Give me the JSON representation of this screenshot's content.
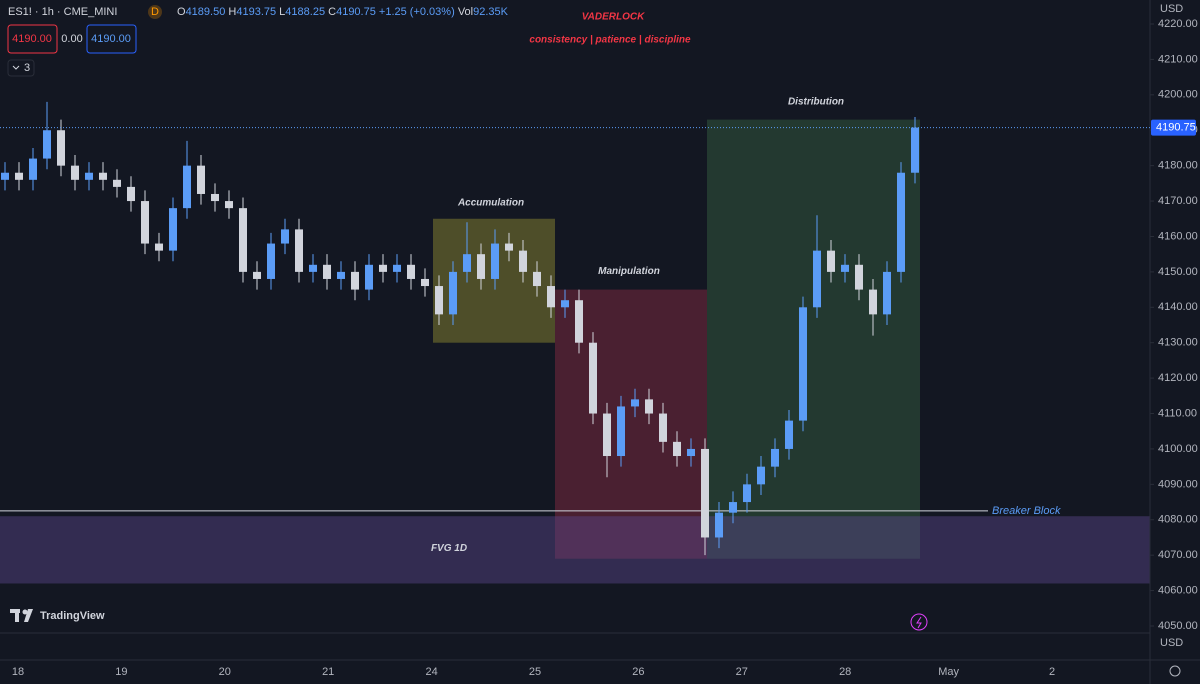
{
  "chart_data": {
    "type": "candlestick",
    "header": {
      "symbol": "ES1! · 1h · CME_MINI",
      "badge": "D",
      "ohlc": [
        {
          "label": "O",
          "value": "4189.50"
        },
        {
          "label": "H",
          "value": "4193.75"
        },
        {
          "label": "L",
          "value": "4188.25"
        },
        {
          "label": "C",
          "value": "4190.75"
        }
      ],
      "change": "+1.25 (+0.03%)",
      "volume_label": "Vol",
      "volume": "92.35K",
      "sell": "4190.00",
      "spread": "0.00",
      "buy": "4190.00",
      "indicators": "3"
    },
    "title": "VADERLOCK",
    "subtitle": "consistency | patience | discipline",
    "currency": "USD",
    "currency_bottom": "USD",
    "logo": "TradingView",
    "categories": [
      "18",
      "19",
      "20",
      "21",
      "24",
      "25",
      "26",
      "27",
      "28",
      "May",
      "2"
    ],
    "ylim": [
      4045,
      4225
    ],
    "yticks": [
      {
        "value": 4050,
        "label": "4050.00"
      },
      {
        "value": 4060,
        "label": "4060.00"
      },
      {
        "value": 4070,
        "label": "4070.00"
      },
      {
        "value": 4080,
        "label": "4080.00"
      },
      {
        "value": 4090,
        "label": "4090.00"
      },
      {
        "value": 4100,
        "label": "4100.00"
      },
      {
        "value": 4110,
        "label": "4110.00"
      },
      {
        "value": 4120,
        "label": "4120.00"
      },
      {
        "value": 4130,
        "label": "4130.00"
      },
      {
        "value": 4140,
        "label": "4140.00"
      },
      {
        "value": 4150,
        "label": "4150.00"
      },
      {
        "value": 4160,
        "label": "4160.00"
      },
      {
        "value": 4170,
        "label": "4170.00"
      },
      {
        "value": 4180,
        "label": "4180.00"
      },
      {
        "value": 4190,
        "label": "4190.00"
      },
      {
        "value": 4200,
        "label": "4200.00"
      },
      {
        "value": 4210,
        "label": "4210.00"
      },
      {
        "value": 4220,
        "label": "4220.00"
      }
    ],
    "last_price": {
      "value": 4190.75,
      "label": "4190.75"
    },
    "up_color": "#5b9cf6",
    "down_color": "#d1d4dc",
    "candles": {
      "open": [
        4176,
        4178,
        4176,
        4182,
        4190,
        4180,
        4176,
        4178,
        4176,
        4174,
        4170,
        4158,
        4156,
        4168,
        4180,
        4172,
        4170,
        4168,
        4150,
        4148,
        4158,
        4162,
        4150,
        4152,
        4148,
        4150,
        4145,
        4152,
        4150,
        4152,
        4148,
        4146,
        4138,
        4150,
        4155,
        4148,
        4158,
        4156,
        4150,
        4146,
        4140,
        4142,
        4130,
        4110,
        4098,
        4112,
        4114,
        4110,
        4102,
        4098,
        4100,
        4075,
        4082,
        4085,
        4090,
        4095,
        4100,
        4108,
        4140,
        4156,
        4150,
        4152,
        4145,
        4138,
        4150,
        4178
      ],
      "high": [
        4181,
        4181,
        4185,
        4198,
        4193,
        4183,
        4181,
        4181,
        4179,
        4177,
        4173,
        4161,
        4171,
        4187,
        4183,
        4175,
        4173,
        4171,
        4153,
        4161,
        4165,
        4165,
        4155,
        4155,
        4153,
        4153,
        4155,
        4155,
        4155,
        4155,
        4151,
        4149,
        4153,
        4164,
        4158,
        4162,
        4161,
        4159,
        4153,
        4149,
        4145,
        4145,
        4133,
        4113,
        4115,
        4117,
        4117,
        4113,
        4105,
        4103,
        4103,
        4085,
        4088,
        4093,
        4098,
        4103,
        4111,
        4143,
        4166,
        4159,
        4155,
        4155,
        4148,
        4153,
        4181,
        4193.75
      ],
      "low": [
        4173,
        4173,
        4173,
        4179,
        4177,
        4173,
        4173,
        4173,
        4171,
        4167,
        4155,
        4153,
        4153,
        4165,
        4169,
        4167,
        4165,
        4147,
        4145,
        4145,
        4155,
        4147,
        4147,
        4145,
        4145,
        4142,
        4142,
        4147,
        4147,
        4145,
        4143,
        4135,
        4135,
        4147,
        4145,
        4145,
        4153,
        4147,
        4143,
        4137,
        4137,
        4127,
        4107,
        4092,
        4095,
        4109,
        4107,
        4099,
        4095,
        4095,
        4070,
        4072,
        4079,
        4082,
        4087,
        4092,
        4097,
        4105,
        4137,
        4147,
        4147,
        4142,
        4132,
        4135,
        4147,
        4175
      ],
      "close": [
        4178,
        4176,
        4182,
        4190,
        4180,
        4176,
        4178,
        4176,
        4174,
        4170,
        4158,
        4156,
        4168,
        4180,
        4172,
        4170,
        4168,
        4150,
        4148,
        4158,
        4162,
        4150,
        4152,
        4148,
        4150,
        4145,
        4152,
        4150,
        4152,
        4148,
        4146,
        4138,
        4150,
        4155,
        4148,
        4158,
        4156,
        4150,
        4146,
        4140,
        4142,
        4130,
        4110,
        4098,
        4112,
        4114,
        4110,
        4102,
        4098,
        4100,
        4075,
        4082,
        4085,
        4090,
        4095,
        4100,
        4108,
        4140,
        4156,
        4150,
        4152,
        4145,
        4138,
        4150,
        4178,
        4190.75
      ]
    },
    "zones": [
      {
        "label": "Accumulation",
        "top": 4165,
        "bottom": 4130,
        "color": "rgba(128,124,48,0.55)"
      },
      {
        "label": "Manipulation",
        "top": 4145,
        "bottom": 4069,
        "color": "rgba(120,40,62,0.55)"
      },
      {
        "label": "Distribution",
        "top": 4193,
        "bottom": 4069,
        "color": "rgba(52,92,62,0.5)"
      },
      {
        "label": "FVG 1D",
        "top": 4081,
        "bottom": 4062,
        "color": "rgba(92,72,140,0.45)"
      }
    ],
    "breaker": {
      "label": "Breaker Block",
      "value": 4082.5
    },
    "grid": false
  }
}
